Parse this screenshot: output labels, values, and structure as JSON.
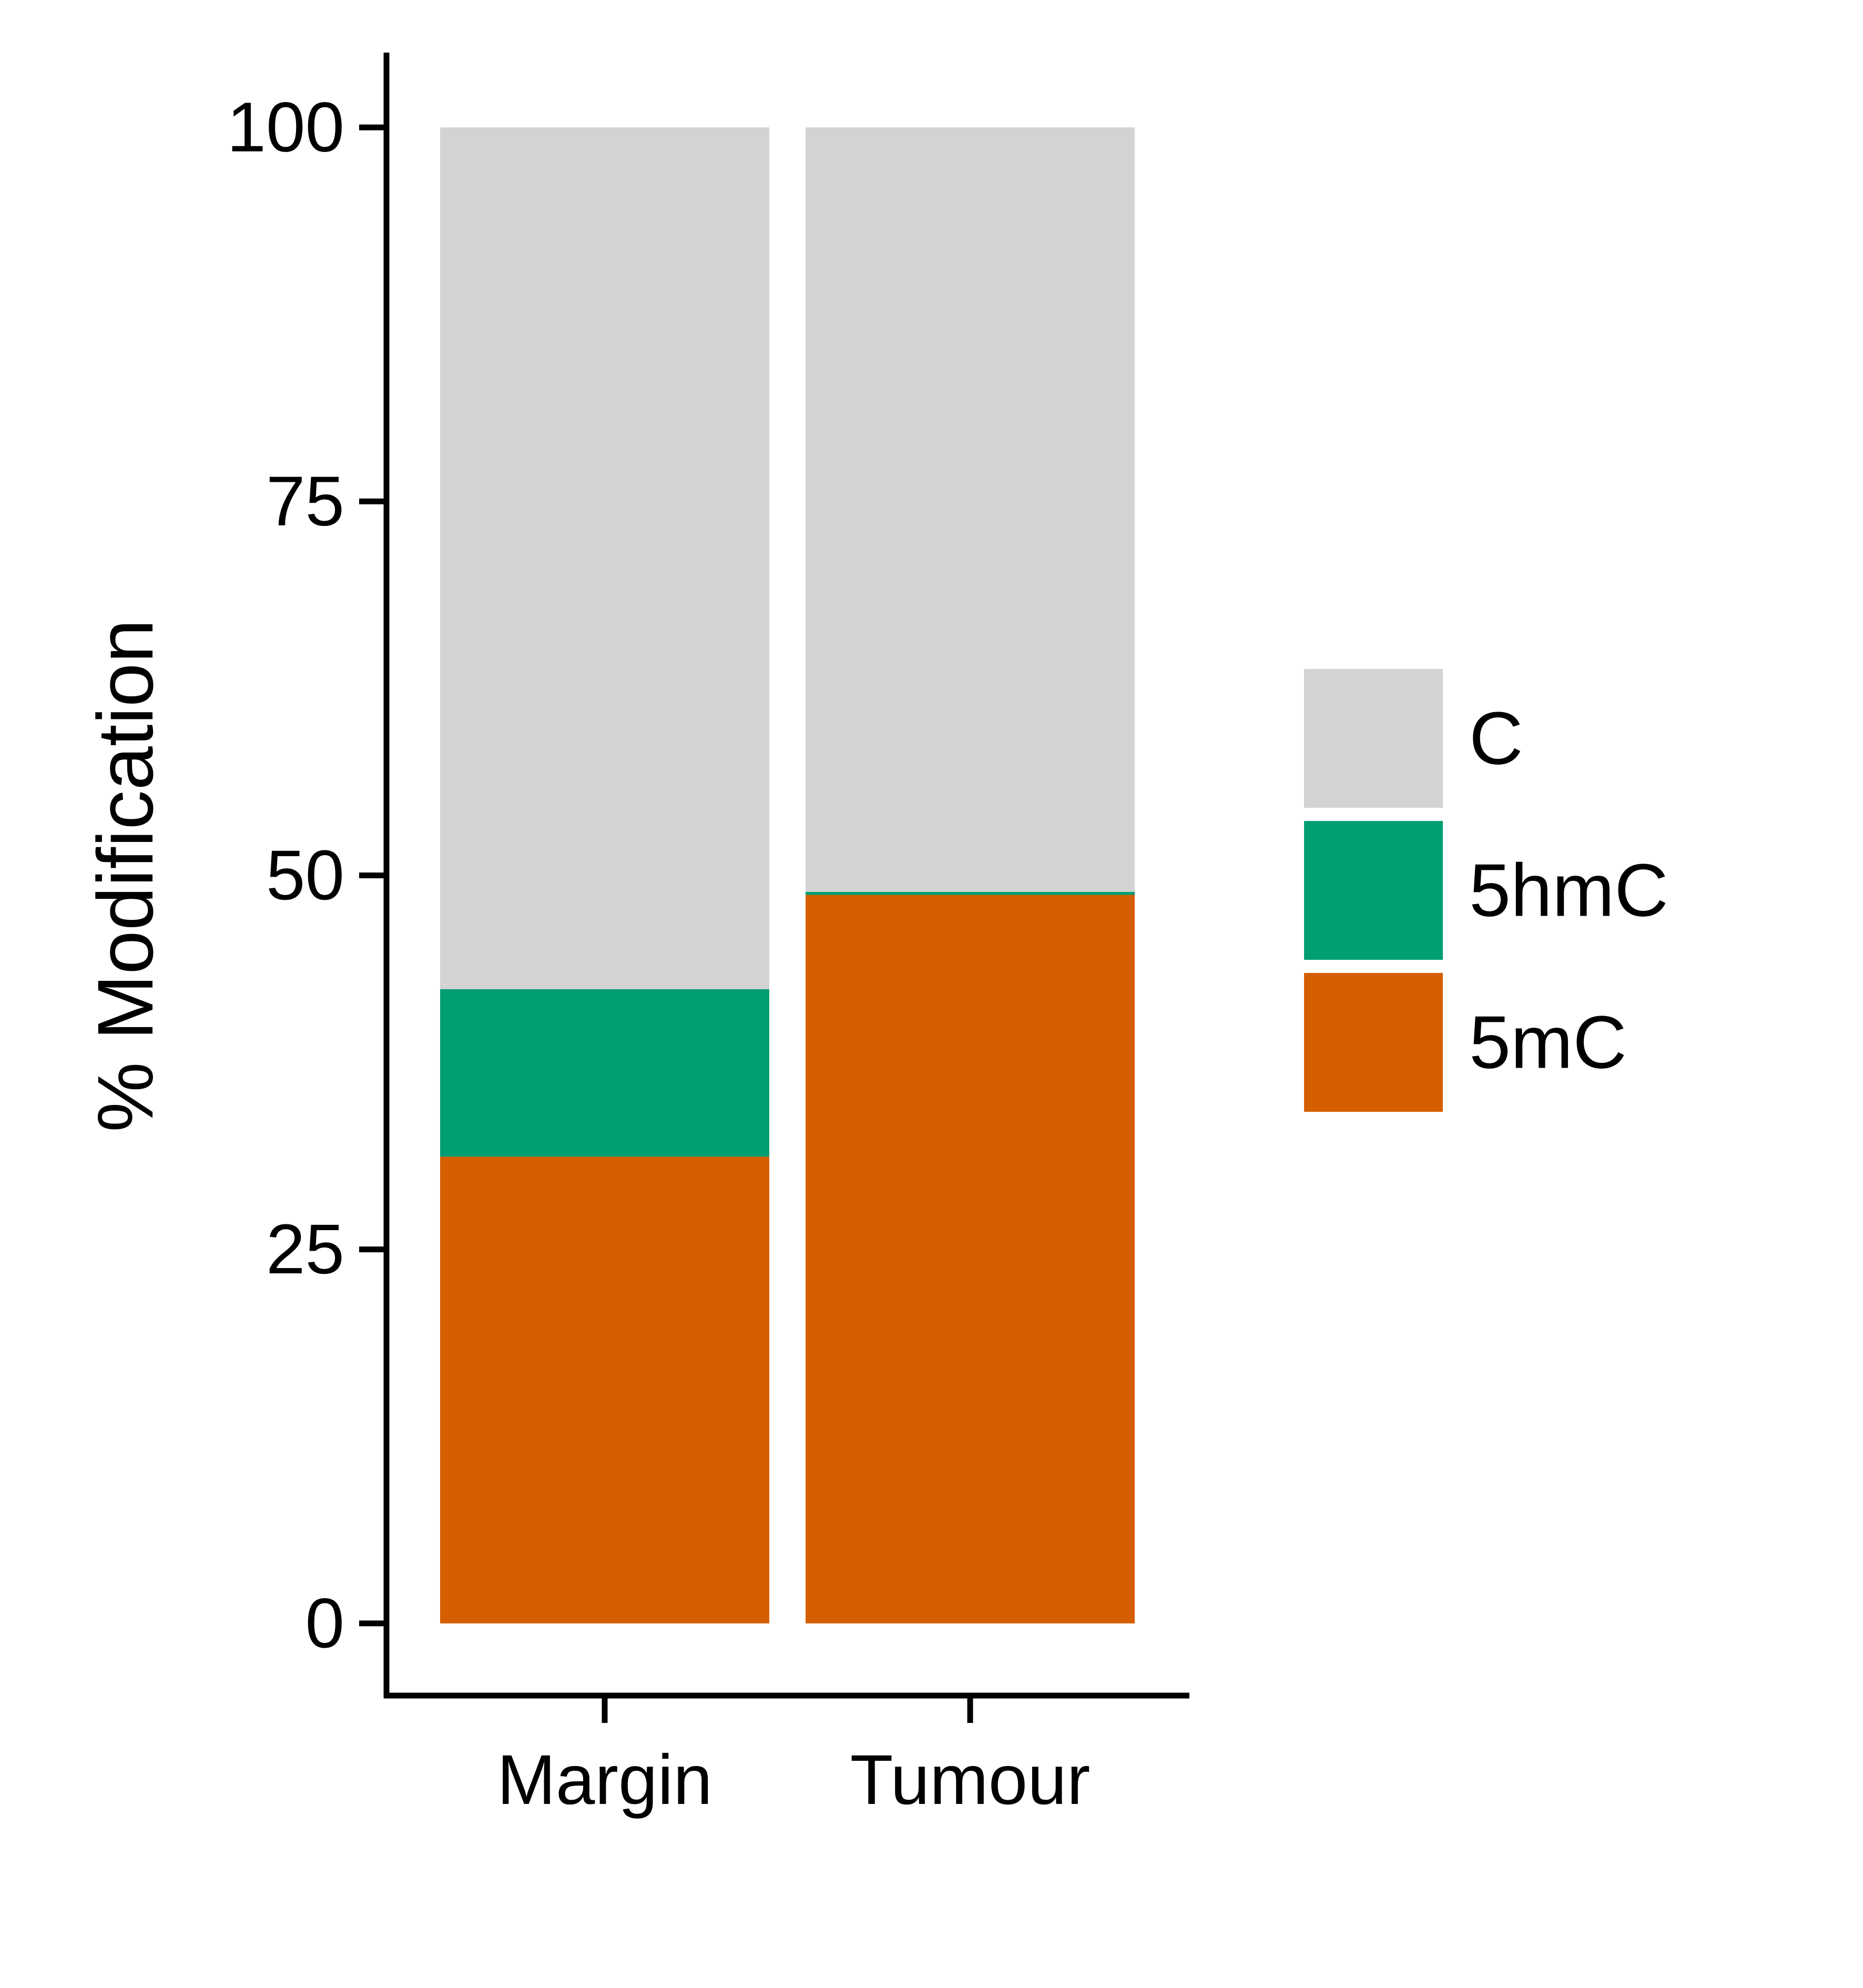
{
  "chart_data": {
    "type": "bar",
    "stacked": true,
    "title": "",
    "xlabel": "",
    "ylabel": "% Modification",
    "categories": [
      "Margin",
      "Tumour"
    ],
    "series": [
      {
        "name": "5mC",
        "color": "#D55E00",
        "values": [
          31.2,
          48.7
        ]
      },
      {
        "name": "5hmC",
        "color": "#009E73",
        "values": [
          11.2,
          0.2
        ]
      },
      {
        "name": "C",
        "color": "#D3D3D3",
        "values": [
          57.6,
          51.1
        ]
      }
    ],
    "ylim": [
      -5,
      105
    ],
    "yticks": [
      0,
      25,
      50,
      75,
      100
    ],
    "ytick_labels": [
      "0",
      "25",
      "50",
      "75",
      "100"
    ],
    "legend": {
      "placement": "right",
      "entries": [
        "C",
        "5hmC",
        "5mC"
      ]
    },
    "grid": false
  }
}
